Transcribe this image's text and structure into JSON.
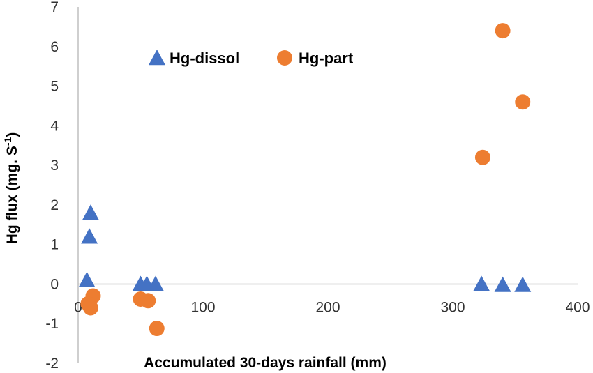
{
  "chart_data": {
    "type": "scatter",
    "xlabel": "Accumulated 30-days rainfall (mm)",
    "ylabel_main": "Hg flux (mg. S",
    "ylabel_sup": "-1",
    "ylabel_close": ")",
    "xlim": [
      0,
      400
    ],
    "ylim": [
      -2,
      7
    ],
    "x_ticks": [
      "0",
      "100",
      "200",
      "300",
      "400"
    ],
    "y_ticks": [
      "-2",
      "-1",
      "0",
      "1",
      "2",
      "3",
      "4",
      "5",
      "6",
      "7"
    ],
    "grid": false,
    "legend_position": "top-left",
    "series": [
      {
        "name": "Hg-dissol",
        "marker": "triangle",
        "color": "#4472C4",
        "points": [
          {
            "x": 10,
            "y": 1.8
          },
          {
            "x": 9,
            "y": 1.2
          },
          {
            "x": 7,
            "y": 0.1
          },
          {
            "x": 50,
            "y": 0.0
          },
          {
            "x": 55,
            "y": 0.0
          },
          {
            "x": 62,
            "y": 0.0
          },
          {
            "x": 323,
            "y": 0.0
          },
          {
            "x": 340,
            "y": -0.02
          },
          {
            "x": 356,
            "y": -0.02
          }
        ]
      },
      {
        "name": "Hg-part",
        "marker": "circle",
        "color": "#ED7D31",
        "points": [
          {
            "x": 12,
            "y": -0.3
          },
          {
            "x": 8,
            "y": -0.5
          },
          {
            "x": 10,
            "y": -0.6
          },
          {
            "x": 50,
            "y": -0.38
          },
          {
            "x": 56,
            "y": -0.42
          },
          {
            "x": 63,
            "y": -1.12
          },
          {
            "x": 324,
            "y": 3.2
          },
          {
            "x": 340,
            "y": 6.4
          },
          {
            "x": 356,
            "y": 4.6
          }
        ]
      }
    ]
  }
}
